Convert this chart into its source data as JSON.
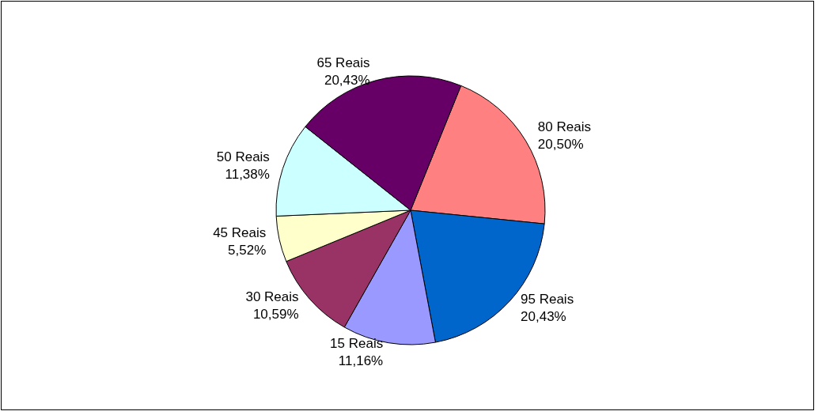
{
  "chart_data": {
    "type": "pie",
    "categories": [
      "80 Reais",
      "95 Reais",
      "15 Reais",
      "30 Reais",
      "45 Reais",
      "50 Reais",
      "65 Reais"
    ],
    "values": [
      20.5,
      20.43,
      11.16,
      10.59,
      5.52,
      11.38,
      20.43
    ],
    "value_labels": [
      "20,50%",
      "20,43%",
      "11,16%",
      "10,59%",
      "5,52%",
      "11,38%",
      "20,43%"
    ],
    "colors": [
      "#ff8080",
      "#0066cc",
      "#9999ff",
      "#993366",
      "#ffffcc",
      "#ccffff",
      "#660066"
    ],
    "legend": false
  }
}
